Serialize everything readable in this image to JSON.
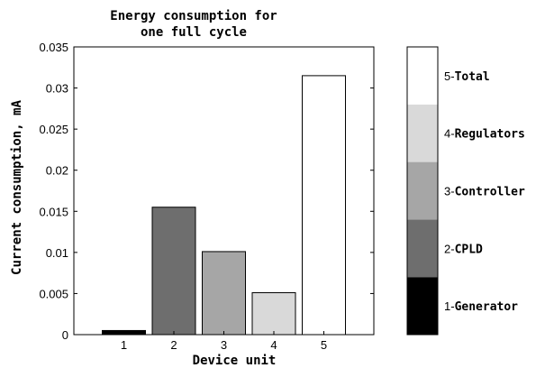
{
  "chart_data": {
    "type": "bar",
    "title": [
      "Energy consumption for",
      "one full cycle"
    ],
    "xlabel": "Device unit",
    "ylabel": "Current consumption, mA",
    "categories": [
      "1",
      "2",
      "3",
      "4",
      "5"
    ],
    "values": [
      0.0005,
      0.0155,
      0.0101,
      0.0051,
      0.0315
    ],
    "ylim": [
      0,
      0.035
    ],
    "xlim": [
      0,
      6
    ],
    "yticks": [
      "0",
      "0.005",
      "0.01",
      "0.015",
      "0.02",
      "0.025",
      "0.03",
      "0.035"
    ],
    "bar_colors": [
      "#000000",
      "#6e6e6e",
      "#a6a6a6",
      "#d9d9d9",
      "#ffffff"
    ],
    "grid": false,
    "colorbar": [
      {
        "num": "1",
        "name": "Generator",
        "color": "#000000"
      },
      {
        "num": "2",
        "name": "CPLD",
        "color": "#6e6e6e"
      },
      {
        "num": "3",
        "name": "Controller",
        "color": "#a6a6a6"
      },
      {
        "num": "4",
        "name": "Regulators",
        "color": "#d9d9d9"
      },
      {
        "num": "5",
        "name": "Total",
        "color": "#ffffff"
      }
    ]
  }
}
